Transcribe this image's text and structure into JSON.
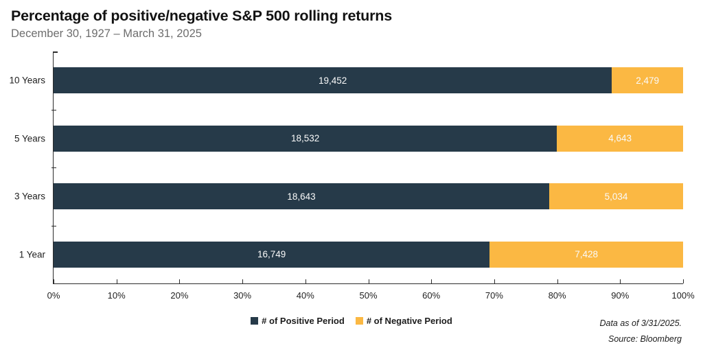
{
  "title": "Percentage of positive/negative S&P 500 rolling returns",
  "subtitle": "December 30, 1927 – March 31, 2025",
  "chart_data": {
    "type": "bar",
    "orientation": "horizontal",
    "stacked": true,
    "stack_normalized_to_percent": true,
    "title": "Percentage of positive/negative S&P 500 rolling returns",
    "subtitle": "December 30, 1927 – March 31, 2025",
    "categories": [
      "10 Years",
      "5 Years",
      "3 Years",
      "1 Year"
    ],
    "series": [
      {
        "name": "# of Positive Period",
        "color": "#263a49",
        "values": [
          19452,
          18532,
          18643,
          16749
        ]
      },
      {
        "name": "# of Negative Period",
        "color": "#fbb843",
        "values": [
          2479,
          4643,
          5034,
          7428
        ]
      }
    ],
    "x_axis": {
      "min": 0,
      "max": 100,
      "tick_step": 10,
      "tick_labels": [
        "0%",
        "10%",
        "20%",
        "30%",
        "40%",
        "50%",
        "60%",
        "70%",
        "80%",
        "90%",
        "100%"
      ]
    },
    "value_label_color": "#fafafa",
    "legend_position": "bottom-center",
    "grid": false
  },
  "footnote": {
    "line1": "Data as of 3/31/2025.",
    "line2": "Source: Bloomberg"
  }
}
